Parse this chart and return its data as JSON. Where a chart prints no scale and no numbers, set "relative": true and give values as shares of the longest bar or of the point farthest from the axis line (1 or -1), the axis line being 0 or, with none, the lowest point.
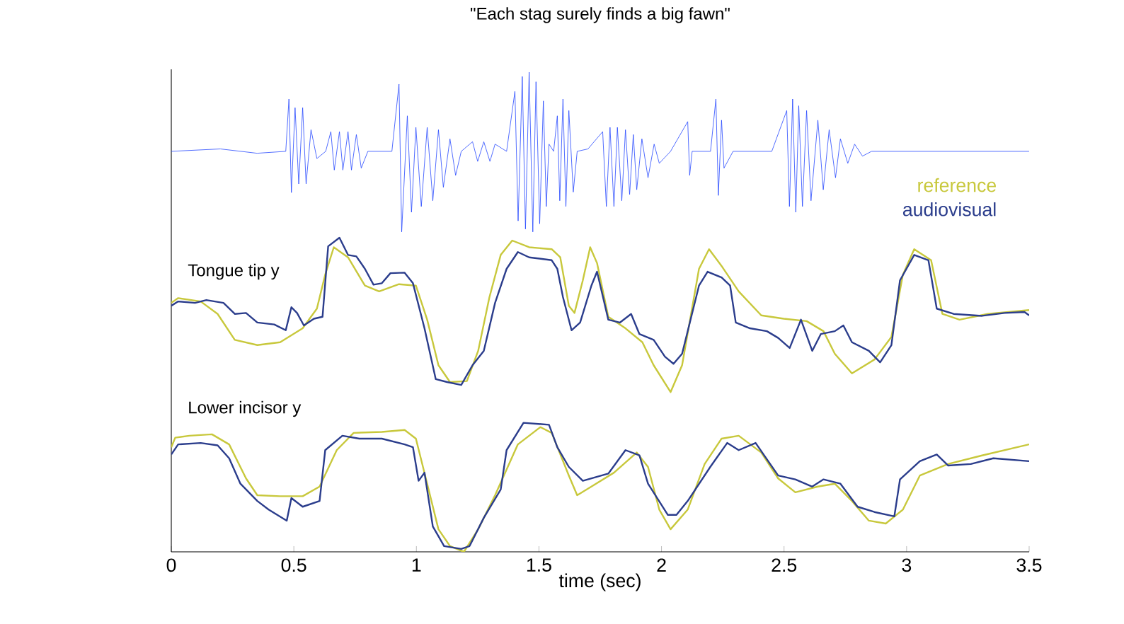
{
  "chart_data": {
    "type": "line",
    "title": "\"Each stag surely finds a big fawn\"",
    "xlabel": "time (sec)",
    "relative": true,
    "legend": "right",
    "grid": false,
    "xlim": [
      0,
      3.5
    ],
    "xticks": [
      0,
      0.5,
      1,
      1.5,
      2,
      2.5,
      3,
      3.5
    ],
    "annotations": [
      "Tongue tip y",
      "Lower incisor y"
    ],
    "series": [
      {
        "color": "#2648ff",
        "x": [
          0,
          0.2,
          0.35,
          0.467,
          0.48,
          0.49,
          0.505,
          0.52,
          0.536,
          0.55,
          0.57,
          0.594,
          0.63,
          0.651,
          0.665,
          0.686,
          0.7,
          0.721,
          0.735,
          0.755,
          0.775,
          0.802,
          0.9,
          0.929,
          0.94,
          0.963,
          0.98,
          0.998,
          1.02,
          1.044,
          1.067,
          1.09,
          1.11,
          1.137,
          1.16,
          1.183,
          1.229,
          1.25,
          1.275,
          1.3,
          1.321,
          1.368,
          1.402,
          1.415,
          1.432,
          1.445,
          1.46,
          1.475,
          1.488,
          1.503,
          1.518,
          1.53,
          1.541,
          1.56,
          1.575,
          1.585,
          1.598,
          1.61,
          1.622,
          1.64,
          1.656,
          1.7,
          1.76,
          1.775,
          1.79,
          1.806,
          1.82,
          1.838,
          1.853,
          1.87,
          1.885,
          1.899,
          1.92,
          1.945,
          1.97,
          1.991,
          2.037,
          2.107,
          2.115,
          2.125,
          2.2,
          2.222,
          2.232,
          2.245,
          2.255,
          2.292,
          2.45,
          2.511,
          2.522,
          2.535,
          2.548,
          2.56,
          2.575,
          2.592,
          2.61,
          2.638,
          2.66,
          2.684,
          2.71,
          2.73,
          2.76,
          2.788,
          2.82,
          2.857,
          3.5
        ],
        "values": [
          0.835,
          0.84,
          0.831,
          0.835,
          0.944,
          0.749,
          0.926,
          0.767,
          0.926,
          0.767,
          0.88,
          0.82,
          0.835,
          0.876,
          0.796,
          0.876,
          0.796,
          0.876,
          0.796,
          0.87,
          0.8,
          0.835,
          0.835,
          0.975,
          0.667,
          0.909,
          0.708,
          0.885,
          0.72,
          0.885,
          0.732,
          0.88,
          0.76,
          0.861,
          0.785,
          0.835,
          0.855,
          0.814,
          0.855,
          0.814,
          0.85,
          0.835,
          0.96,
          0.69,
          0.991,
          0.673,
          1.0,
          0.667,
          0.98,
          0.684,
          0.94,
          0.72,
          0.85,
          0.835,
          0.909,
          0.732,
          0.944,
          0.72,
          0.92,
          0.75,
          0.835,
          0.84,
          0.876,
          0.72,
          0.885,
          0.72,
          0.885,
          0.732,
          0.88,
          0.745,
          0.87,
          0.755,
          0.861,
          0.78,
          0.85,
          0.81,
          0.835,
          0.897,
          0.785,
          0.835,
          0.835,
          0.944,
          0.743,
          0.9,
          0.8,
          0.835,
          0.835,
          0.92,
          0.72,
          0.944,
          0.708,
          0.93,
          0.72,
          0.92,
          0.732,
          0.9,
          0.755,
          0.88,
          0.78,
          0.861,
          0.81,
          0.85,
          0.825,
          0.835,
          0.835
        ]
      },
      {
        "name": "reference",
        "color": "#c8c83c",
        "x": [
          0,
          0.028,
          0.12,
          0.189,
          0.259,
          0.351,
          0.444,
          0.536,
          0.594,
          0.628,
          0.663,
          0.721,
          0.79,
          0.848,
          0.929,
          0.998,
          1.044,
          1.09,
          1.137,
          1.206,
          1.252,
          1.298,
          1.344,
          1.391,
          1.46,
          1.552,
          1.587,
          1.622,
          1.645,
          1.679,
          1.709,
          1.737,
          1.783,
          1.853,
          1.922,
          1.968,
          2.037,
          2.084,
          2.153,
          2.194,
          2.245,
          2.315,
          2.407,
          2.499,
          2.592,
          2.661,
          2.707,
          2.777,
          2.869,
          2.938,
          2.985,
          3.031,
          3.1,
          3.146,
          3.216,
          3.331,
          3.5
        ],
        "values": [
          0.519,
          0.529,
          0.522,
          0.496,
          0.442,
          0.431,
          0.437,
          0.466,
          0.507,
          0.578,
          0.635,
          0.614,
          0.555,
          0.543,
          0.558,
          0.555,
          0.484,
          0.389,
          0.354,
          0.356,
          0.419,
          0.531,
          0.619,
          0.649,
          0.635,
          0.631,
          0.614,
          0.513,
          0.498,
          0.566,
          0.635,
          0.602,
          0.49,
          0.466,
          0.437,
          0.389,
          0.333,
          0.389,
          0.59,
          0.631,
          0.596,
          0.543,
          0.493,
          0.486,
          0.481,
          0.46,
          0.413,
          0.372,
          0.401,
          0.448,
          0.578,
          0.631,
          0.608,
          0.496,
          0.484,
          0.496,
          0.504
        ]
      },
      {
        "name": "audiovisual",
        "color": "#2b3d8c",
        "x": [
          0,
          0.028,
          0.097,
          0.143,
          0.213,
          0.259,
          0.305,
          0.351,
          0.42,
          0.467,
          0.49,
          0.513,
          0.541,
          0.582,
          0.617,
          0.64,
          0.686,
          0.721,
          0.755,
          0.79,
          0.825,
          0.859,
          0.894,
          0.952,
          0.986,
          1.033,
          1.079,
          1.125,
          1.183,
          1.229,
          1.275,
          1.321,
          1.368,
          1.414,
          1.46,
          1.552,
          1.575,
          1.598,
          1.633,
          1.668,
          1.714,
          1.737,
          1.783,
          1.83,
          1.876,
          1.91,
          1.968,
          2.014,
          2.049,
          2.084,
          2.153,
          2.188,
          2.245,
          2.28,
          2.303,
          2.361,
          2.43,
          2.476,
          2.523,
          2.569,
          2.615,
          2.65,
          2.707,
          2.742,
          2.777,
          2.846,
          2.892,
          2.938,
          2.973,
          3.031,
          3.089,
          3.123,
          3.192,
          3.308,
          3.4,
          3.481,
          3.5
        ],
        "values": [
          0.513,
          0.522,
          0.519,
          0.525,
          0.519,
          0.496,
          0.498,
          0.478,
          0.474,
          0.462,
          0.51,
          0.498,
          0.472,
          0.486,
          0.49,
          0.637,
          0.655,
          0.619,
          0.616,
          0.59,
          0.557,
          0.56,
          0.581,
          0.582,
          0.56,
          0.466,
          0.36,
          0.354,
          0.348,
          0.389,
          0.419,
          0.519,
          0.59,
          0.625,
          0.614,
          0.608,
          0.59,
          0.531,
          0.462,
          0.478,
          0.555,
          0.584,
          0.484,
          0.478,
          0.496,
          0.454,
          0.442,
          0.407,
          0.392,
          0.413,
          0.555,
          0.584,
          0.572,
          0.555,
          0.478,
          0.466,
          0.46,
          0.446,
          0.425,
          0.484,
          0.419,
          0.454,
          0.46,
          0.472,
          0.437,
          0.419,
          0.395,
          0.431,
          0.566,
          0.619,
          0.608,
          0.507,
          0.496,
          0.492,
          0.498,
          0.5,
          0.493
        ]
      },
      {
        "color": "#c8c83c",
        "x": [
          0,
          0.016,
          0.074,
          0.166,
          0.236,
          0.305,
          0.351,
          0.444,
          0.536,
          0.605,
          0.675,
          0.744,
          0.859,
          0.952,
          0.998,
          1.044,
          1.09,
          1.137,
          1.194,
          1.252,
          1.321,
          1.414,
          1.506,
          1.552,
          1.622,
          1.656,
          1.714,
          1.806,
          1.899,
          1.945,
          1.991,
          2.037,
          2.107,
          2.176,
          2.245,
          2.315,
          2.407,
          2.476,
          2.546,
          2.638,
          2.707,
          2.777,
          2.846,
          2.915,
          2.985,
          3.054,
          3.169,
          3.308,
          3.5
        ],
        "values": [
          0.218,
          0.238,
          0.242,
          0.245,
          0.224,
          0.153,
          0.118,
          0.116,
          0.116,
          0.136,
          0.212,
          0.248,
          0.25,
          0.254,
          0.236,
          0.142,
          0.047,
          0.012,
          0.0,
          0.047,
          0.118,
          0.224,
          0.26,
          0.248,
          0.159,
          0.118,
          0.136,
          0.165,
          0.207,
          0.177,
          0.088,
          0.047,
          0.088,
          0.183,
          0.236,
          0.242,
          0.207,
          0.153,
          0.124,
          0.136,
          0.142,
          0.106,
          0.065,
          0.059,
          0.088,
          0.159,
          0.183,
          0.201,
          0.224
        ]
      },
      {
        "color": "#2b3d8c",
        "x": [
          0,
          0.028,
          0.12,
          0.189,
          0.236,
          0.282,
          0.351,
          0.397,
          0.471,
          0.49,
          0.536,
          0.605,
          0.628,
          0.698,
          0.767,
          0.859,
          0.952,
          0.986,
          1.009,
          1.033,
          1.067,
          1.113,
          1.183,
          1.217,
          1.275,
          1.344,
          1.368,
          1.437,
          1.541,
          1.575,
          1.622,
          1.679,
          1.783,
          1.853,
          1.91,
          1.945,
          2.026,
          2.061,
          2.107,
          2.199,
          2.268,
          2.315,
          2.384,
          2.476,
          2.546,
          2.615,
          2.661,
          2.73,
          2.8,
          2.869,
          2.95,
          2.973,
          3.054,
          3.123,
          3.169,
          3.262,
          3.354,
          3.5
        ],
        "values": [
          0.203,
          0.224,
          0.227,
          0.222,
          0.195,
          0.142,
          0.106,
          0.088,
          0.065,
          0.112,
          0.094,
          0.106,
          0.212,
          0.242,
          0.236,
          0.236,
          0.224,
          0.218,
          0.148,
          0.165,
          0.053,
          0.012,
          0.006,
          0.012,
          0.071,
          0.13,
          0.212,
          0.269,
          0.265,
          0.218,
          0.177,
          0.148,
          0.163,
          0.212,
          0.201,
          0.142,
          0.077,
          0.077,
          0.106,
          0.177,
          0.227,
          0.212,
          0.227,
          0.159,
          0.151,
          0.136,
          0.151,
          0.142,
          0.094,
          0.083,
          0.074,
          0.151,
          0.189,
          0.203,
          0.18,
          0.183,
          0.195,
          0.189
        ]
      }
    ]
  }
}
